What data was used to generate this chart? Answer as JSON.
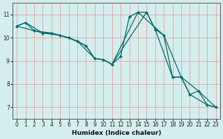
{
  "xlabel": "Humidex (Indice chaleur)",
  "ylabel": "",
  "bg_color": "#d4eeee",
  "grid_color": "#e8a0a0",
  "line_color": "#006b6b",
  "marker_color": "#006b6b",
  "xlim": [
    -0.5,
    23.5
  ],
  "ylim": [
    6.5,
    11.5
  ],
  "yticks": [
    7,
    8,
    9,
    10,
    11
  ],
  "xticks": [
    0,
    1,
    2,
    3,
    4,
    5,
    6,
    7,
    8,
    9,
    10,
    11,
    12,
    13,
    14,
    15,
    16,
    17,
    18,
    19,
    20,
    21,
    22,
    23
  ],
  "series": [
    [
      0,
      10.5
    ],
    [
      1,
      10.65
    ],
    [
      2,
      10.3
    ],
    [
      3,
      10.2
    ],
    [
      4,
      10.2
    ],
    [
      5,
      10.1
    ],
    [
      6,
      10.0
    ],
    [
      7,
      9.85
    ],
    [
      8,
      9.65
    ],
    [
      9,
      9.1
    ],
    [
      10,
      9.05
    ],
    [
      11,
      8.85
    ],
    [
      12,
      9.2
    ],
    [
      13,
      10.9
    ],
    [
      14,
      11.1
    ],
    [
      15,
      11.1
    ],
    [
      16,
      10.35
    ],
    [
      17,
      10.1
    ],
    [
      18,
      8.3
    ],
    [
      19,
      8.3
    ],
    [
      20,
      7.55
    ],
    [
      21,
      7.7
    ],
    [
      22,
      7.1
    ],
    [
      23,
      7.0
    ]
  ],
  "series2": [
    [
      0,
      10.5
    ],
    [
      2,
      10.3
    ],
    [
      4,
      10.2
    ],
    [
      6,
      10.0
    ],
    [
      8,
      9.65
    ],
    [
      9,
      9.1
    ],
    [
      10,
      9.05
    ],
    [
      11,
      8.85
    ],
    [
      15,
      11.1
    ],
    [
      16,
      10.35
    ],
    [
      18,
      8.3
    ],
    [
      19,
      8.3
    ],
    [
      21,
      7.7
    ],
    [
      23,
      7.0
    ]
  ],
  "series3": [
    [
      0,
      10.5
    ],
    [
      1,
      10.65
    ],
    [
      3,
      10.2
    ],
    [
      5,
      10.1
    ],
    [
      7,
      9.85
    ],
    [
      9,
      9.1
    ],
    [
      10,
      9.05
    ],
    [
      11,
      8.85
    ],
    [
      14,
      11.1
    ],
    [
      17,
      10.1
    ],
    [
      19,
      8.3
    ],
    [
      20,
      7.55
    ],
    [
      22,
      7.1
    ],
    [
      23,
      7.0
    ]
  ]
}
